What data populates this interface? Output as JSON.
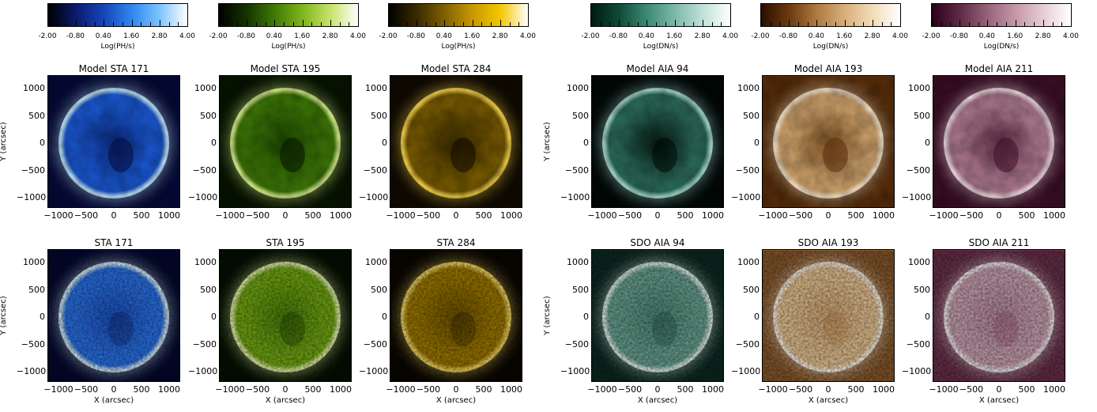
{
  "colorbars": [
    {
      "id": "sta171",
      "unit": "Log(PH/s)",
      "ticks": [
        "-2.00",
        "-0.80",
        "0.40",
        "1.60",
        "2.80",
        "4.00"
      ],
      "colormap": [
        "#000000",
        "#0b1a6e",
        "#1746b8",
        "#2f86f0",
        "#7cc4ff",
        "#ffffff"
      ]
    },
    {
      "id": "sta195",
      "unit": "Log(PH/s)",
      "ticks": [
        "-2.00",
        "-0.80",
        "0.40",
        "1.60",
        "2.80",
        "4.00"
      ],
      "colormap": [
        "#000000",
        "#163300",
        "#3f7a05",
        "#7fb41c",
        "#c7e36a",
        "#ffffff"
      ]
    },
    {
      "id": "sta284",
      "unit": "Log(PH/s)",
      "ticks": [
        "-2.00",
        "-0.80",
        "0.40",
        "1.60",
        "2.80",
        "4.00"
      ],
      "colormap": [
        "#000000",
        "#3a2a00",
        "#806000",
        "#c99800",
        "#f3c700",
        "#ffffff"
      ]
    },
    {
      "id": "aia94",
      "unit": "Log(DN/s)",
      "ticks": [
        "-2.00",
        "-0.80",
        "0.40",
        "1.60",
        "2.80",
        "4.00"
      ],
      "colormap": [
        "#001a10",
        "#0f4a38",
        "#3c8a74",
        "#7cb8a8",
        "#bfe0d8",
        "#ffffff"
      ]
    },
    {
      "id": "aia193",
      "unit": "Log(DN/s)",
      "ticks": [
        "-2.00",
        "-0.80",
        "0.40",
        "1.60",
        "2.80",
        "4.00"
      ],
      "colormap": [
        "#2a0e00",
        "#6a3a10",
        "#b07a40",
        "#d8ae7a",
        "#f2dcb8",
        "#ffffff"
      ]
    },
    {
      "id": "aia211",
      "unit": "Log(DN/s)",
      "ticks": [
        "-2.00",
        "-0.80",
        "0.40",
        "1.60",
        "2.80",
        "4.00"
      ],
      "colormap": [
        "#2a0018",
        "#5e2a44",
        "#97627a",
        "#c597a8",
        "#e6cdd5",
        "#ffffff"
      ]
    }
  ],
  "panels_top": [
    {
      "title": "Model STA 171",
      "colors": {
        "bg": "#050a3a",
        "disk": "#1a5ad8",
        "rim": "#bfe6ff",
        "center": "#0c2e8a"
      }
    },
    {
      "title": "Model STA 195",
      "colors": {
        "bg": "#061400",
        "disk": "#3e7a06",
        "rim": "#d6f08a",
        "center": "#1f4802"
      }
    },
    {
      "title": "Model STA 284",
      "colors": {
        "bg": "#100a00",
        "disk": "#7a5c00",
        "rim": "#f6d24a",
        "center": "#3a2c00"
      }
    },
    {
      "title": "Model AIA 94",
      "colors": {
        "bg": "#000806",
        "disk": "#2c6e5c",
        "rim": "#a8ddd0",
        "center": "#051a12"
      }
    },
    {
      "title": "Model AIA 193",
      "colors": {
        "bg": "#5a2e0a",
        "disk": "#d3a66e",
        "rim": "#f8e6cc",
        "center": "#8a5a28"
      }
    },
    {
      "title": "Model AIA 211",
      "colors": {
        "bg": "#3c0e26",
        "disk": "#b47e94",
        "rim": "#efdae2",
        "center": "#6a304c"
      }
    }
  ],
  "panels_bottom": [
    {
      "title": "STA 171",
      "colors": {
        "bg": "#030830",
        "disk": "#2a74ec",
        "rim": "#d6f0ff",
        "center": "#1b52c4"
      }
    },
    {
      "title": "STA 195",
      "colors": {
        "bg": "#041000",
        "disk": "#74ac12",
        "rim": "#e6f8a8",
        "center": "#4a8208"
      }
    },
    {
      "title": "STA 284",
      "colors": {
        "bg": "#0a0600",
        "disk": "#a27c00",
        "rim": "#f6d860",
        "center": "#6e5400"
      }
    },
    {
      "title": "SDO AIA 94",
      "colors": {
        "bg": "#0c2a22",
        "disk": "#6aa694",
        "rim": "#e2f4ef",
        "center": "#4e8a78"
      }
    },
    {
      "title": "SDO AIA 193",
      "colors": {
        "bg": "#8a5a2c",
        "disk": "#ecc896",
        "rim": "#fff4e4",
        "center": "#d4a874"
      }
    },
    {
      "title": "SDO AIA 211",
      "colors": {
        "bg": "#6a304a",
        "disk": "#cfa6b6",
        "rim": "#f8ecf0",
        "center": "#b88a9e"
      }
    }
  ],
  "axes": {
    "xticks": [
      "−1000",
      "−500",
      "0",
      "500",
      "1000"
    ],
    "yticks": [
      "1000",
      "500",
      "0",
      "−500",
      "−1000"
    ],
    "xlabel": "X (arcsec)",
    "ylabel": "Y (arcsec)"
  }
}
